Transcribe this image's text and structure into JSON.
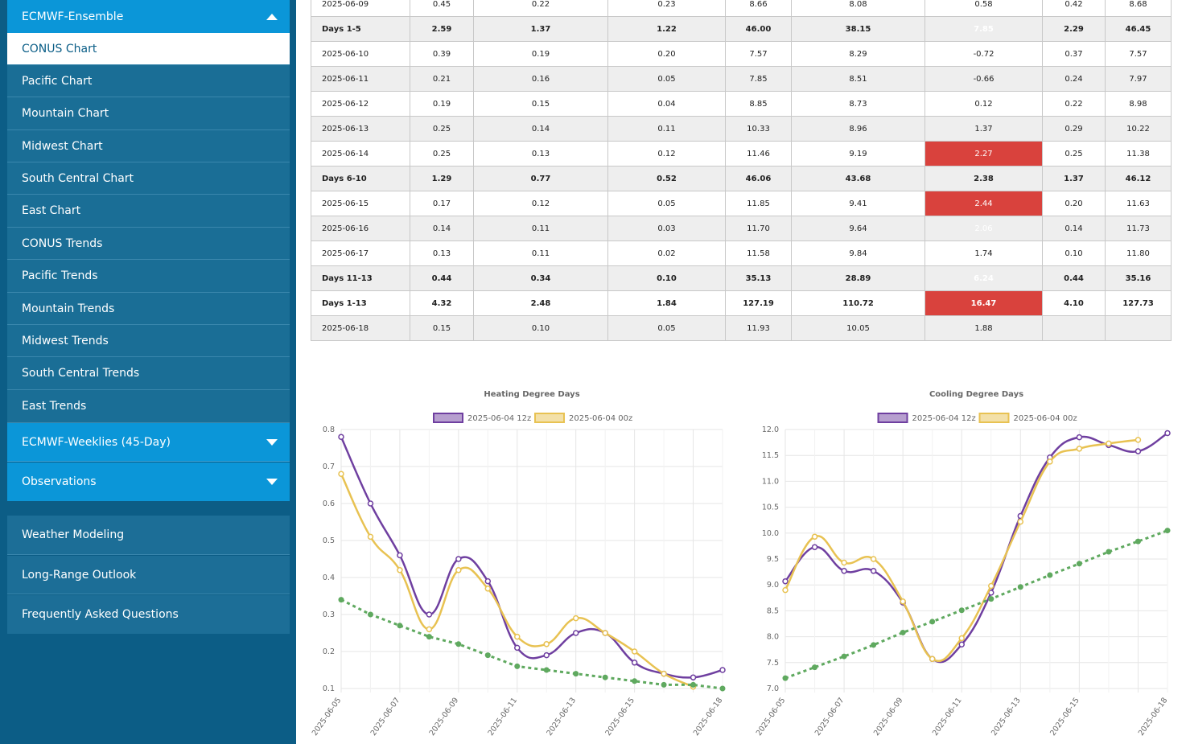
{
  "sidebar": {
    "ensemble_header": "ECMWF-Ensemble",
    "items": [
      {
        "label": "CONUS Chart"
      },
      {
        "label": "Pacific Chart"
      },
      {
        "label": "Mountain Chart"
      },
      {
        "label": "Midwest Chart"
      },
      {
        "label": "South Central Chart"
      },
      {
        "label": "East Chart"
      },
      {
        "label": "CONUS Trends"
      },
      {
        "label": "Pacific Trends"
      },
      {
        "label": "Mountain Trends"
      },
      {
        "label": "Midwest Trends"
      },
      {
        "label": "South Central Trends"
      },
      {
        "label": "East Trends"
      }
    ],
    "weeklies_header": "ECMWF-Weeklies (45-Day)",
    "observations_header": "Observations",
    "links": [
      {
        "label": "Weather Modeling"
      },
      {
        "label": "Long-Range Outlook"
      },
      {
        "label": "Frequently Asked Questions"
      }
    ]
  },
  "table": {
    "rows": [
      {
        "cells": [
          "2025-06-09",
          "0.45",
          "0.22",
          "0.23",
          "8.66",
          "8.08",
          "0.58",
          "0.42",
          "8.68"
        ]
      },
      {
        "cells": [
          "Days 1-5",
          "2.59",
          "1.37",
          "1.22",
          "46.00",
          "38.15",
          "7.85",
          "2.29",
          "46.45"
        ]
      },
      {
        "cells": [
          "2025-06-10",
          "0.39",
          "0.19",
          "0.20",
          "7.57",
          "8.29",
          "-0.72",
          "0.37",
          "7.57"
        ]
      },
      {
        "cells": [
          "2025-06-11",
          "0.21",
          "0.16",
          "0.05",
          "7.85",
          "8.51",
          "-0.66",
          "0.24",
          "7.97"
        ]
      },
      {
        "cells": [
          "2025-06-12",
          "0.19",
          "0.15",
          "0.04",
          "8.85",
          "8.73",
          "0.12",
          "0.22",
          "8.98"
        ]
      },
      {
        "cells": [
          "2025-06-13",
          "0.25",
          "0.14",
          "0.11",
          "10.33",
          "8.96",
          "1.37",
          "0.29",
          "10.22"
        ]
      },
      {
        "cells": [
          "2025-06-14",
          "0.25",
          "0.13",
          "0.12",
          "11.46",
          "9.19",
          "2.27",
          "0.25",
          "11.38"
        ]
      },
      {
        "cells": [
          "Days 6-10",
          "1.29",
          "0.77",
          "0.52",
          "46.06",
          "43.68",
          "2.38",
          "1.37",
          "46.12"
        ]
      },
      {
        "cells": [
          "2025-06-15",
          "0.17",
          "0.12",
          "0.05",
          "11.85",
          "9.41",
          "2.44",
          "0.20",
          "11.63"
        ]
      },
      {
        "cells": [
          "2025-06-16",
          "0.14",
          "0.11",
          "0.03",
          "11.70",
          "9.64",
          "2.06",
          "0.14",
          "11.73"
        ]
      },
      {
        "cells": [
          "2025-06-17",
          "0.13",
          "0.11",
          "0.02",
          "11.58",
          "9.84",
          "1.74",
          "0.10",
          "11.80"
        ]
      },
      {
        "cells": [
          "Days 11-13",
          "0.44",
          "0.34",
          "0.10",
          "35.13",
          "28.89",
          "6.24",
          "0.44",
          "35.16"
        ]
      },
      {
        "cells": [
          "Days 1-13",
          "4.32",
          "2.48",
          "1.84",
          "127.19",
          "110.72",
          "16.47",
          "4.10",
          "127.73"
        ]
      },
      {
        "cells": [
          "2025-06-18",
          "0.15",
          "0.10",
          "0.05",
          "11.93",
          "10.05",
          "1.88",
          "",
          ""
        ]
      }
    ],
    "highlight_color": "#d9423d"
  },
  "chart_data": [
    {
      "type": "line",
      "title": "Heating Degree Days",
      "x": [
        "2025-06-05",
        "2025-06-06",
        "2025-06-07",
        "2025-06-08",
        "2025-06-09",
        "2025-06-10",
        "2025-06-11",
        "2025-06-12",
        "2025-06-13",
        "2025-06-14",
        "2025-06-15",
        "2025-06-16",
        "2025-06-17",
        "2025-06-18"
      ],
      "xticks": [
        "2025-06-05",
        "2025-06-07",
        "2025-06-09",
        "2025-06-11",
        "2025-06-13",
        "2025-06-15",
        "2025-06-18"
      ],
      "ylim": [
        0.1,
        0.8
      ],
      "yticks": [
        "0.8",
        "0.7",
        "0.6",
        "0.5",
        "0.4",
        "0.3",
        "0.2",
        "0.1"
      ],
      "grid": true,
      "legend_position": "top",
      "series": [
        {
          "name": "2025-06-04 12z",
          "color": "#6f3fa0",
          "values": [
            0.78,
            0.6,
            0.46,
            0.3,
            0.45,
            0.39,
            0.21,
            0.19,
            0.25,
            0.25,
            0.17,
            0.14,
            0.13,
            0.15
          ]
        },
        {
          "name": "2025-06-04 00z",
          "color": "#e8c252",
          "values": [
            0.68,
            0.51,
            0.42,
            0.26,
            0.42,
            0.37,
            0.24,
            0.22,
            0.29,
            0.25,
            0.2,
            0.14,
            0.105,
            null
          ]
        },
        {
          "name": "",
          "color": "#5fa95f",
          "dashed": true,
          "values": [
            0.34,
            0.3,
            0.27,
            0.24,
            0.22,
            0.19,
            0.16,
            0.15,
            0.14,
            0.13,
            0.12,
            0.11,
            0.11,
            0.1
          ]
        }
      ]
    },
    {
      "type": "line",
      "title": "Cooling Degree Days",
      "x": [
        "2025-06-05",
        "2025-06-06",
        "2025-06-07",
        "2025-06-08",
        "2025-06-09",
        "2025-06-10",
        "2025-06-11",
        "2025-06-12",
        "2025-06-13",
        "2025-06-14",
        "2025-06-15",
        "2025-06-16",
        "2025-06-17",
        "2025-06-18"
      ],
      "xticks": [
        "2025-06-05",
        "2025-06-07",
        "2025-06-09",
        "2025-06-11",
        "2025-06-13",
        "2025-06-15",
        "2025-06-18"
      ],
      "ylim": [
        7.0,
        12.0
      ],
      "yticks": [
        "12.0",
        "11.5",
        "11.0",
        "10.5",
        "10.0",
        "9.5",
        "9.0",
        "8.5",
        "8.0",
        "7.5",
        "7.0"
      ],
      "grid": true,
      "legend_position": "top",
      "series": [
        {
          "name": "2025-06-04 12z",
          "color": "#6f3fa0",
          "values": [
            9.07,
            9.73,
            9.27,
            9.27,
            8.66,
            7.57,
            7.85,
            8.85,
            10.33,
            11.46,
            11.85,
            11.7,
            11.58,
            11.93
          ]
        },
        {
          "name": "2025-06-04 00z",
          "color": "#e8c252",
          "values": [
            8.9,
            9.93,
            9.43,
            9.5,
            8.68,
            7.57,
            7.97,
            8.98,
            10.22,
            11.38,
            11.63,
            11.73,
            11.8,
            null
          ]
        },
        {
          "name": "",
          "color": "#5fa95f",
          "dashed": true,
          "values": [
            7.2,
            7.41,
            7.62,
            7.84,
            8.08,
            8.29,
            8.51,
            8.73,
            8.96,
            9.19,
            9.41,
            9.64,
            9.84,
            10.05
          ]
        }
      ]
    }
  ]
}
